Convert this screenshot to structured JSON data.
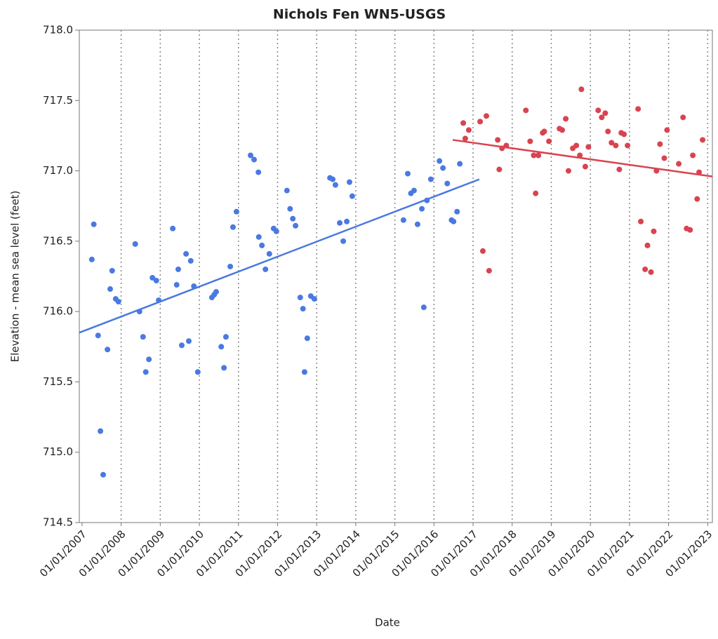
{
  "chart_data": {
    "type": "scatter",
    "title": "Nichols Fen WN5-USGS",
    "x_label": "Date",
    "y_label": "Elevation - mean sea level (feet)",
    "xlim": [
      2006.93,
      2023.12
    ],
    "ylim": [
      714.5,
      718.0
    ],
    "xticks": [
      {
        "value": 2007,
        "label": "01/01/2007"
      },
      {
        "value": 2008,
        "label": "01/01/2008"
      },
      {
        "value": 2009,
        "label": "01/01/2009"
      },
      {
        "value": 2010,
        "label": "01/01/2010"
      },
      {
        "value": 2011,
        "label": "01/01/2011"
      },
      {
        "value": 2012,
        "label": "01/01/2012"
      },
      {
        "value": 2013,
        "label": "01/01/2013"
      },
      {
        "value": 2014,
        "label": "01/01/2014"
      },
      {
        "value": 2015,
        "label": "01/01/2015"
      },
      {
        "value": 2016,
        "label": "01/01/2016"
      },
      {
        "value": 2017,
        "label": "01/01/2017"
      },
      {
        "value": 2018,
        "label": "01/01/2018"
      },
      {
        "value": 2019,
        "label": "01/01/2019"
      },
      {
        "value": 2020,
        "label": "01/01/2020"
      },
      {
        "value": 2021,
        "label": "01/01/2021"
      },
      {
        "value": 2022,
        "label": "01/01/2022"
      },
      {
        "value": 2023,
        "label": "01/01/2023"
      }
    ],
    "yticks": [
      {
        "value": 714.5,
        "label": "714.5"
      },
      {
        "value": 715,
        "label": "715.0"
      },
      {
        "value": 715.5,
        "label": "715.5"
      },
      {
        "value": 716,
        "label": "716.0"
      },
      {
        "value": 716.5,
        "label": "716.5"
      },
      {
        "value": 717,
        "label": "717.0"
      },
      {
        "value": 717.5,
        "label": "717.5"
      },
      {
        "value": 718,
        "label": "718.0"
      }
    ],
    "x_grid": true,
    "series": [
      {
        "color": "#4a79e0",
        "x": [
          2007.25,
          2007.3,
          2007.41,
          2007.47,
          2007.54,
          2007.65,
          2007.72,
          2007.77,
          2007.86,
          2007.93,
          2008.36,
          2008.47,
          2008.56,
          2008.63,
          2008.71,
          2008.8,
          2008.9,
          2008.96,
          2009.32,
          2009.42,
          2009.46,
          2009.55,
          2009.66,
          2009.73,
          2009.78,
          2009.86,
          2009.96,
          2010.32,
          2010.38,
          2010.43,
          2010.56,
          2010.63,
          2010.68,
          2010.79,
          2010.86,
          2010.95,
          2011.31,
          2011.4,
          2011.51,
          2011.52,
          2011.6,
          2011.69,
          2011.79,
          2011.9,
          2011.97,
          2012.24,
          2012.32,
          2012.39,
          2012.46,
          2012.58,
          2012.65,
          2012.69,
          2012.76,
          2012.85,
          2012.94,
          2013.34,
          2013.41,
          2013.48,
          2013.59,
          2013.68,
          2013.77,
          2013.84,
          2013.91,
          2015.22,
          2015.33,
          2015.41,
          2015.49,
          2015.58,
          2015.69,
          2015.74,
          2015.82,
          2015.92,
          2016.14,
          2016.23,
          2016.34,
          2016.45,
          2016.5,
          2016.59,
          2016.66
        ],
        "values": [
          716.37,
          716.62,
          715.83,
          715.15,
          714.84,
          715.73,
          716.16,
          716.29,
          716.09,
          716.07,
          716.48,
          716.0,
          715.82,
          715.57,
          715.66,
          716.24,
          716.22,
          716.08,
          716.59,
          716.19,
          716.3,
          715.76,
          716.41,
          715.79,
          716.36,
          716.18,
          715.57,
          716.1,
          716.12,
          716.14,
          715.75,
          715.6,
          715.82,
          716.32,
          716.6,
          716.71,
          717.11,
          717.08,
          716.99,
          716.53,
          716.47,
          716.3,
          716.41,
          716.59,
          716.57,
          716.86,
          716.73,
          716.66,
          716.61,
          716.1,
          716.02,
          715.57,
          715.81,
          716.11,
          716.09,
          716.95,
          716.94,
          716.9,
          716.63,
          716.5,
          716.64,
          716.92,
          716.82,
          716.65,
          716.98,
          716.84,
          716.86,
          716.62,
          716.73,
          716.03,
          716.79,
          716.94,
          717.07,
          717.02,
          716.91,
          716.65,
          716.64,
          716.71,
          717.05
        ]
      },
      {
        "color": "#d9434f",
        "x": [
          2016.75,
          2016.8,
          2016.89,
          2017.18,
          2017.25,
          2017.34,
          2017.41,
          2017.63,
          2017.67,
          2017.74,
          2017.85,
          2018.35,
          2018.46,
          2018.55,
          2018.6,
          2018.67,
          2018.78,
          2018.82,
          2018.94,
          2019.21,
          2019.28,
          2019.37,
          2019.44,
          2019.55,
          2019.64,
          2019.73,
          2019.77,
          2019.87,
          2019.95,
          2020.2,
          2020.29,
          2020.38,
          2020.45,
          2020.54,
          2020.65,
          2020.74,
          2020.79,
          2020.86,
          2020.95,
          2021.22,
          2021.29,
          2021.4,
          2021.46,
          2021.55,
          2021.62,
          2021.69,
          2021.78,
          2021.89,
          2021.96,
          2022.26,
          2022.37,
          2022.46,
          2022.55,
          2022.62,
          2022.73,
          2022.78,
          2022.87
        ],
        "values": [
          717.34,
          717.23,
          717.29,
          717.35,
          716.43,
          717.39,
          716.29,
          717.22,
          717.01,
          717.16,
          717.18,
          717.43,
          717.21,
          717.11,
          716.84,
          717.11,
          717.27,
          717.28,
          717.21,
          717.3,
          717.29,
          717.37,
          717.0,
          717.16,
          717.18,
          717.11,
          717.58,
          717.03,
          717.17,
          717.43,
          717.38,
          717.41,
          717.28,
          717.2,
          717.18,
          717.01,
          717.27,
          717.26,
          717.18,
          717.44,
          716.64,
          716.3,
          716.47,
          716.28,
          716.57,
          717.0,
          717.19,
          717.09,
          717.29,
          717.05,
          717.38,
          716.59,
          716.58,
          717.11,
          716.8,
          716.99,
          717.22
        ]
      }
    ],
    "fit_lines": [
      {
        "color": "#4a79e0",
        "x": [
          2006.93,
          2017.16
        ],
        "values": [
          715.85,
          716.94
        ]
      },
      {
        "color": "#d9434f",
        "x": [
          2016.48,
          2023.12
        ],
        "values": [
          717.22,
          716.96
        ]
      }
    ]
  }
}
